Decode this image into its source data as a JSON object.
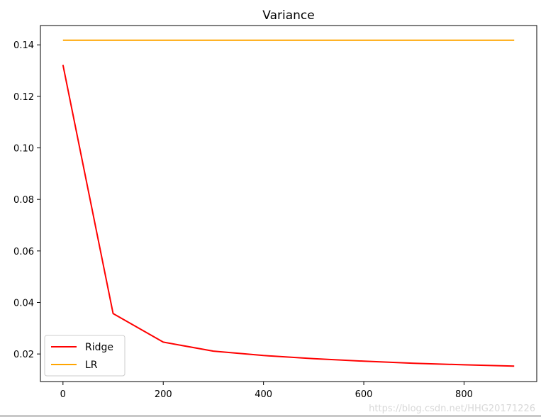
{
  "chart_data": {
    "type": "line",
    "title": "Variance",
    "xlabel": "",
    "ylabel": "",
    "xlim": [
      -45,
      945
    ],
    "ylim": [
      0.0093,
      0.1475
    ],
    "xticks": [
      0,
      200,
      400,
      600,
      800
    ],
    "yticks": [
      0.02,
      0.04,
      0.06,
      0.08,
      0.1,
      0.12,
      0.14
    ],
    "xtick_labels": [
      "0",
      "200",
      "400",
      "600",
      "800"
    ],
    "ytick_labels": [
      "0.02",
      "0.04",
      "0.06",
      "0.08",
      "0.10",
      "0.12",
      "0.14"
    ],
    "grid": false,
    "legend_position": "lower-left",
    "x": [
      0,
      100,
      200,
      300,
      400,
      500,
      600,
      700,
      800,
      900
    ],
    "series": [
      {
        "name": "Ridge",
        "color": "#ff0000",
        "values": [
          0.1322,
          0.0357,
          0.0246,
          0.0211,
          0.0194,
          0.0182,
          0.0172,
          0.0164,
          0.0158,
          0.0153
        ]
      },
      {
        "name": "LR",
        "color": "#ffa500",
        "values": [
          0.1418,
          0.1418,
          0.1418,
          0.1418,
          0.1418,
          0.1418,
          0.1418,
          0.1418,
          0.1418,
          0.1418
        ]
      }
    ]
  },
  "watermark": "https://blog.csdn.net/HHG20171226"
}
